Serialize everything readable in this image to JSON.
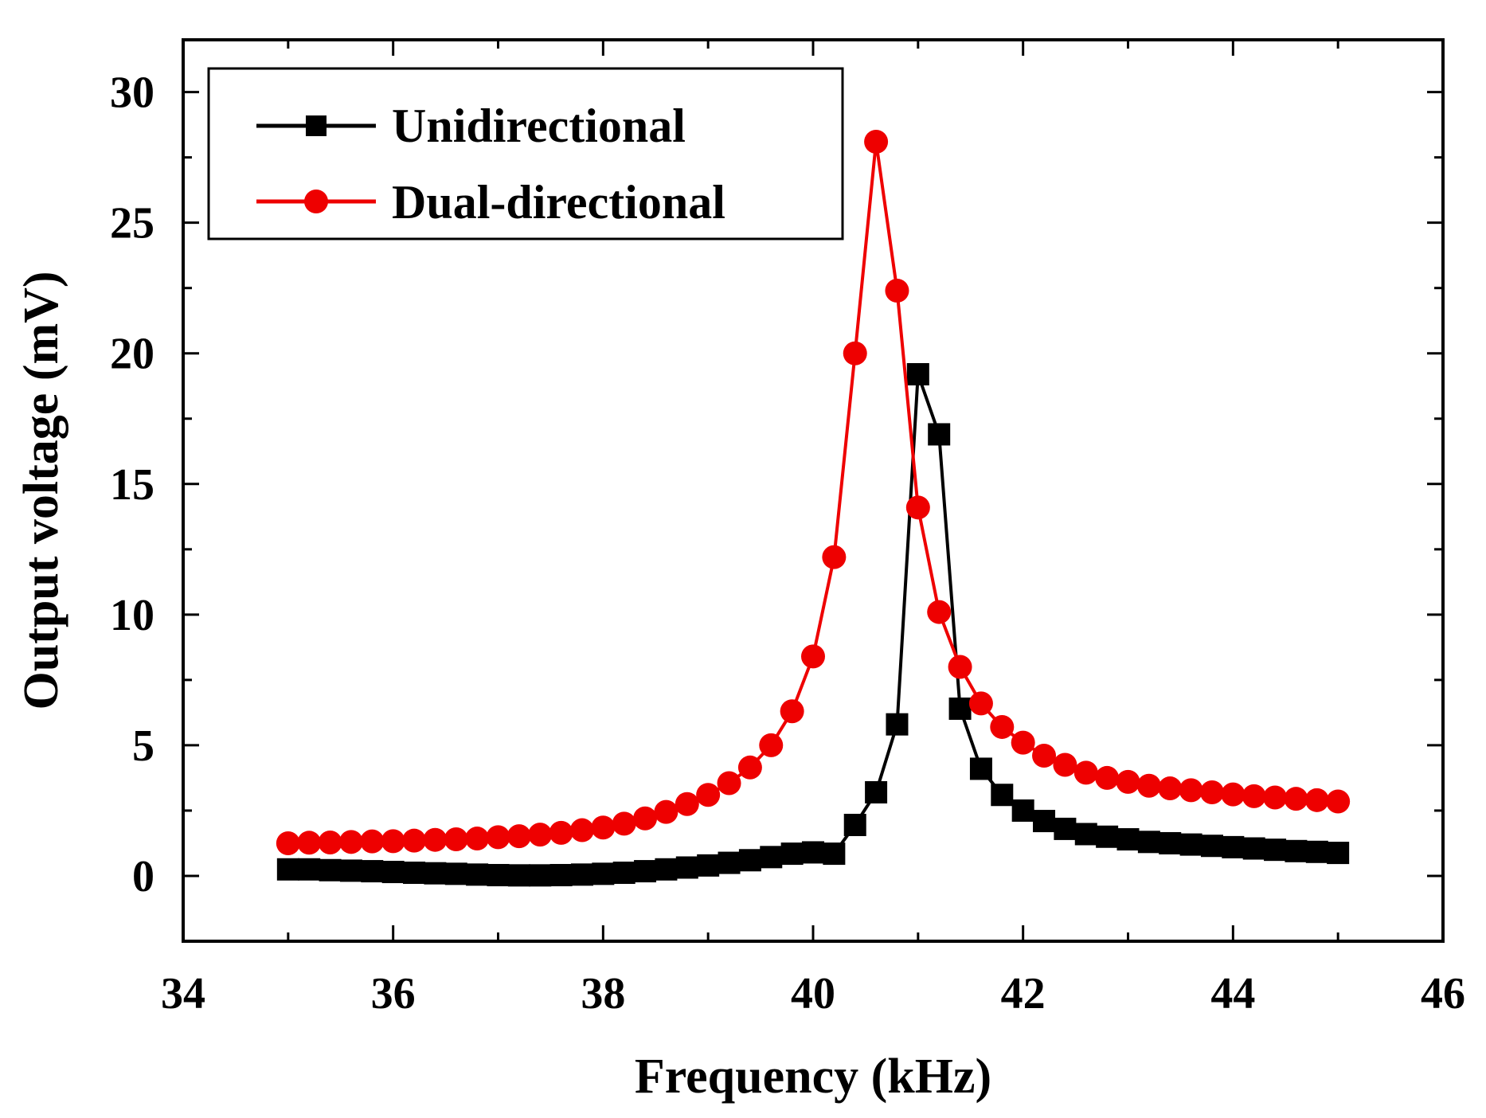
{
  "chart_data": {
    "type": "line",
    "title": "",
    "xlabel": "Frequency (kHz)",
    "ylabel": "Output voltage (mV)",
    "xlim": [
      34,
      46
    ],
    "ylim": [
      -2.5,
      32
    ],
    "xticks": [
      34,
      36,
      38,
      40,
      42,
      44,
      46
    ],
    "yticks": [
      0,
      5,
      10,
      15,
      20,
      25,
      30
    ],
    "xtick_labels": [
      "34",
      "36",
      "38",
      "40",
      "42",
      "44",
      "46"
    ],
    "ytick_labels": [
      "0",
      "5",
      "10",
      "15",
      "20",
      "25",
      "30"
    ],
    "legend_position": "top-left",
    "x": [
      35.0,
      35.2,
      35.4,
      35.6,
      35.8,
      36.0,
      36.2,
      36.4,
      36.6,
      36.8,
      37.0,
      37.2,
      37.4,
      37.6,
      37.8,
      38.0,
      38.2,
      38.4,
      38.6,
      38.8,
      39.0,
      39.2,
      39.4,
      39.6,
      39.8,
      40.0,
      40.2,
      40.4,
      40.6,
      40.8,
      41.0,
      41.2,
      41.4,
      41.6,
      41.8,
      42.0,
      42.2,
      42.4,
      42.6,
      42.8,
      43.0,
      43.2,
      43.4,
      43.6,
      43.8,
      44.0,
      44.2,
      44.4,
      44.6,
      44.8,
      45.0
    ],
    "series": [
      {
        "name": "Unidirectional",
        "color": "#000000",
        "marker": "square",
        "values": [
          0.25,
          0.25,
          0.22,
          0.2,
          0.18,
          0.15,
          0.12,
          0.1,
          0.08,
          0.05,
          0.03,
          0.02,
          0.02,
          0.03,
          0.05,
          0.08,
          0.12,
          0.18,
          0.25,
          0.32,
          0.4,
          0.5,
          0.6,
          0.72,
          0.85,
          0.9,
          0.85,
          1.95,
          3.2,
          5.8,
          19.2,
          16.9,
          6.4,
          4.1,
          3.1,
          2.5,
          2.1,
          1.8,
          1.6,
          1.5,
          1.4,
          1.3,
          1.25,
          1.2,
          1.15,
          1.1,
          1.05,
          1.0,
          0.95,
          0.92,
          0.88
        ]
      },
      {
        "name": "Dual-directional",
        "color": "#ee0000",
        "marker": "circle",
        "values": [
          1.25,
          1.27,
          1.28,
          1.3,
          1.32,
          1.33,
          1.35,
          1.38,
          1.4,
          1.43,
          1.48,
          1.52,
          1.58,
          1.65,
          1.75,
          1.85,
          2.0,
          2.2,
          2.45,
          2.75,
          3.1,
          3.55,
          4.15,
          5.0,
          6.3,
          8.4,
          12.2,
          20.0,
          28.1,
          22.4,
          14.1,
          10.1,
          8.0,
          6.6,
          5.7,
          5.1,
          4.6,
          4.25,
          3.95,
          3.75,
          3.6,
          3.45,
          3.35,
          3.28,
          3.2,
          3.12,
          3.05,
          3.0,
          2.95,
          2.9,
          2.85
        ]
      }
    ]
  }
}
